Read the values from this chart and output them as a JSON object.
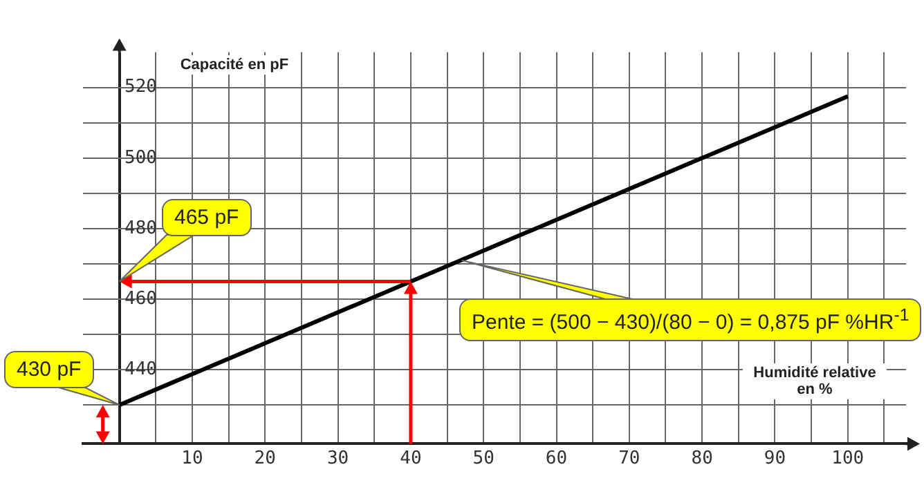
{
  "chart_data": {
    "type": "line",
    "xlabel": "Humidité relative en %",
    "ylabel": "Capacité en pF",
    "series": [
      {
        "color": "#000000",
        "x": [
          0,
          100
        ],
        "values": [
          430,
          517.5
        ]
      }
    ],
    "xlim": [
      -5,
      108
    ],
    "xticks": [
      {
        "value": 0,
        "label": null
      },
      {
        "value": 5,
        "label": null
      },
      10,
      {
        "value": 15,
        "label": null
      },
      20,
      {
        "value": 25,
        "label": null
      },
      30,
      {
        "value": 35,
        "label": null
      },
      40,
      {
        "value": 45,
        "label": null
      },
      50,
      {
        "value": 55,
        "label": null
      },
      60,
      {
        "value": 65,
        "label": null
      },
      70,
      {
        "value": 75,
        "label": null
      },
      80,
      {
        "value": 85,
        "label": null
      },
      90,
      {
        "value": 95,
        "label": null
      },
      100,
      {
        "value": 105,
        "label": null
      }
    ],
    "ylim": [
      419,
      530
    ],
    "yticks": [
      {
        "value": 430,
        "label": null
      },
      440,
      {
        "value": 450,
        "label": null
      },
      460,
      {
        "value": 470,
        "label": null
      },
      480,
      {
        "value": 490,
        "label": null
      },
      500,
      {
        "value": 510,
        "label": null
      },
      520
    ],
    "ref_lines": [
      {
        "axis": "x",
        "value": 40,
        "color": "#ff0000"
      },
      {
        "axis": "y",
        "value": 465,
        "color": "#ff0000"
      }
    ],
    "grid": true,
    "marker": "none",
    "line_style": "solid",
    "annotations": [
      "465 pF",
      {
        "text": "430 pF",
        "x": 0,
        "y": 430
      },
      {
        "text": "Pente = (500 − 430)/(80 − 0) = 0,875 pF %HR$^{-1}$",
        "x": 47,
        "y": 471
      }
    ]
  }
}
